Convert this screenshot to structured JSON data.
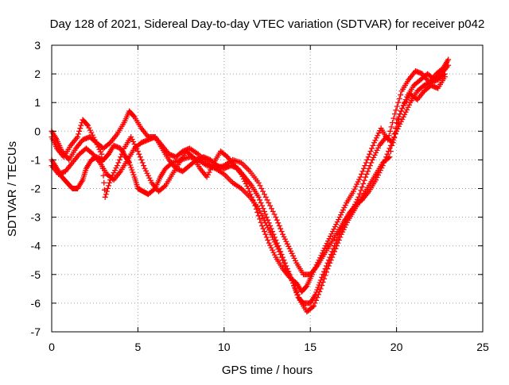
{
  "chart_data": {
    "type": "scatter",
    "title": "Day 128 of 2021, Sidereal Day-to-day VTEC variation (SDTVAR) for receiver p042",
    "xlabel": "GPS time / hours",
    "ylabel": "SDTVAR / TECUs",
    "xlim": [
      0,
      25
    ],
    "ylim": [
      -7,
      3
    ],
    "x_ticks": [
      0,
      5,
      10,
      15,
      20,
      25
    ],
    "x_tick_labels": [
      "0",
      "5",
      "10",
      "15",
      "20",
      "25"
    ],
    "y_ticks": [
      -7,
      -6,
      -5,
      -4,
      -3,
      -2,
      -1,
      0,
      1,
      2,
      3
    ],
    "y_tick_labels": [
      "-7",
      "-6",
      "-5",
      "-4",
      "-3",
      "-2",
      "-1",
      "0",
      "1",
      "2",
      "3"
    ],
    "grid": true,
    "legend": "none",
    "marker": "+",
    "color": "#ff0000",
    "series": [
      {
        "name": "track-1",
        "x": [
          0.0,
          0.3,
          0.6,
          0.9,
          1.2,
          1.5,
          1.8,
          2.0,
          2.3,
          2.6,
          3.0,
          3.3,
          3.6,
          4.0,
          4.3,
          4.5,
          4.8,
          5.0,
          5.3,
          5.6,
          6.0,
          6.3,
          6.6,
          7.0,
          7.5,
          8.0,
          8.5,
          9.0,
          9.5,
          10.0,
          10.5,
          11.0,
          11.5,
          12.0,
          12.4,
          12.8,
          13.2,
          13.6,
          14.0,
          14.3,
          14.6,
          15.0,
          15.3,
          15.6,
          16.0,
          16.4,
          16.8,
          17.2,
          17.6,
          18.0,
          18.4,
          18.8,
          19.2,
          19.6,
          20.0,
          20.4,
          20.8,
          21.2,
          21.6,
          22.0,
          22.4,
          22.8
        ],
        "y": [
          -1.0,
          -1.3,
          -1.6,
          -1.8,
          -2.0,
          -2.0,
          -1.7,
          -1.3,
          -1.0,
          -0.9,
          -1.0,
          -0.8,
          -0.5,
          -0.6,
          -0.9,
          -1.1,
          -1.6,
          -2.0,
          -2.1,
          -2.2,
          -2.0,
          -1.6,
          -1.3,
          -1.1,
          -1.0,
          -0.9,
          -1.0,
          -1.2,
          -1.3,
          -1.5,
          -1.8,
          -2.0,
          -2.3,
          -2.7,
          -3.2,
          -3.7,
          -4.2,
          -4.8,
          -5.3,
          -5.8,
          -6.0,
          -6.0,
          -5.7,
          -5.2,
          -4.6,
          -4.0,
          -3.4,
          -2.9,
          -2.6,
          -2.4,
          -2.1,
          -1.7,
          -1.2,
          -0.6,
          0.0,
          0.5,
          1.0,
          1.4,
          1.6,
          1.7,
          1.8,
          2.0
        ]
      },
      {
        "name": "track-2",
        "x": [
          0.0,
          0.3,
          0.6,
          1.0,
          1.4,
          1.8,
          2.2,
          2.6,
          3.0,
          3.4,
          3.8,
          4.2,
          4.5,
          4.8,
          5.2,
          5.6,
          6.0,
          6.4,
          6.8,
          7.2,
          7.6,
          8.0,
          8.5,
          9.0,
          9.5,
          10.0,
          10.5,
          11.0,
          11.5,
          12.0,
          12.5,
          13.0,
          13.4,
          13.8,
          14.2,
          14.6,
          15.0,
          15.4,
          15.8,
          16.2,
          16.6,
          17.0,
          17.4,
          17.8,
          18.2,
          18.6,
          19.0,
          19.4,
          19.8,
          20.2,
          20.6,
          21.0,
          21.4,
          21.8,
          22.2,
          22.6,
          23.0
        ],
        "y": [
          0.0,
          -0.3,
          -0.7,
          -1.0,
          -0.6,
          -0.3,
          -0.2,
          -0.4,
          -0.6,
          -0.4,
          -0.1,
          0.3,
          0.7,
          0.5,
          0.1,
          -0.2,
          -0.2,
          -0.5,
          -0.8,
          -0.9,
          -0.7,
          -0.6,
          -0.8,
          -1.1,
          -1.3,
          -1.2,
          -1.0,
          -1.1,
          -1.4,
          -1.8,
          -2.4,
          -3.0,
          -3.6,
          -4.1,
          -4.6,
          -5.0,
          -5.0,
          -4.7,
          -4.3,
          -3.9,
          -3.5,
          -3.1,
          -2.8,
          -2.3,
          -1.6,
          -1.0,
          -0.5,
          -0.2,
          -0.4,
          0.6,
          1.2,
          1.6,
          1.8,
          2.0,
          1.8,
          2.0,
          2.3
        ]
      },
      {
        "name": "track-3",
        "x": [
          0.0,
          0.4,
          0.8,
          1.2,
          1.6,
          2.0,
          2.4,
          2.8,
          3.2,
          3.6,
          4.0,
          4.4,
          4.8,
          5.2,
          5.6,
          6.0,
          6.4,
          6.8,
          7.2,
          7.6,
          8.0,
          8.4,
          8.8,
          9.2,
          9.6,
          10.0,
          10.4,
          10.8,
          11.2,
          11.6,
          12.0,
          12.4,
          12.8,
          13.2,
          13.6,
          14.0,
          14.4,
          14.8,
          15.2,
          15.6,
          16.0,
          16.4,
          16.8,
          17.2,
          17.6,
          18.0,
          18.4,
          18.8,
          19.2,
          19.6,
          20.0,
          20.4,
          20.8,
          21.2,
          21.6,
          22.0,
          22.4,
          22.8
        ],
        "y": [
          -1.2,
          -1.5,
          -1.4,
          -1.1,
          -0.8,
          -0.6,
          -0.8,
          -1.1,
          -1.5,
          -1.7,
          -1.4,
          -1.0,
          -0.6,
          -0.4,
          -0.3,
          -0.2,
          -0.6,
          -1.0,
          -1.3,
          -1.4,
          -1.2,
          -1.0,
          -0.9,
          -1.0,
          -1.2,
          -1.3,
          -1.2,
          -1.3,
          -1.6,
          -1.9,
          -2.3,
          -2.9,
          -3.5,
          -4.1,
          -4.7,
          -5.3,
          -5.9,
          -6.3,
          -6.1,
          -5.5,
          -4.8,
          -4.2,
          -3.6,
          -3.1,
          -2.7,
          -2.3,
          -1.9,
          -1.5,
          -1.1,
          -0.9,
          0.3,
          0.9,
          1.3,
          1.1,
          1.4,
          1.6,
          1.5,
          1.9
        ]
      },
      {
        "name": "track-4",
        "x": [
          0.0,
          0.3,
          0.7,
          1.1,
          1.5,
          1.8,
          2.1,
          2.5,
          2.9,
          3.1,
          3.4,
          3.8,
          4.2,
          4.6,
          5.0,
          5.4,
          5.8,
          6.2,
          6.6,
          7.0,
          7.4,
          7.8,
          8.2,
          8.6,
          9.0,
          9.4,
          9.8,
          10.2,
          10.6,
          11.0,
          11.4,
          11.8,
          12.2,
          12.6,
          13.0,
          13.4,
          13.8,
          14.2,
          14.5,
          14.8,
          15.1,
          15.5,
          15.9,
          16.3,
          16.7,
          17.1,
          17.5,
          17.9,
          18.3,
          18.7,
          19.1,
          19.5,
          19.9,
          20.3,
          20.7,
          21.1,
          21.5,
          21.9,
          22.3,
          22.7,
          23.0
        ],
        "y": [
          -0.2,
          -0.6,
          -0.9,
          -0.5,
          -0.2,
          0.4,
          0.2,
          -0.3,
          -0.8,
          -2.3,
          -1.7,
          -1.2,
          -0.6,
          -0.2,
          -0.7,
          -1.3,
          -1.8,
          -2.1,
          -1.9,
          -1.5,
          -1.1,
          -0.7,
          -0.9,
          -1.3,
          -1.6,
          -1.1,
          -0.7,
          -0.9,
          -1.2,
          -1.5,
          -2.0,
          -2.6,
          -3.3,
          -3.9,
          -4.4,
          -4.8,
          -5.1,
          -5.3,
          -5.6,
          -5.4,
          -5.0,
          -4.5,
          -4.0,
          -3.5,
          -3.0,
          -2.5,
          -2.1,
          -1.6,
          -1.0,
          -0.4,
          0.1,
          -0.3,
          0.6,
          1.4,
          1.8,
          2.1,
          2.0,
          1.7,
          2.0,
          2.2,
          2.5
        ]
      }
    ]
  }
}
